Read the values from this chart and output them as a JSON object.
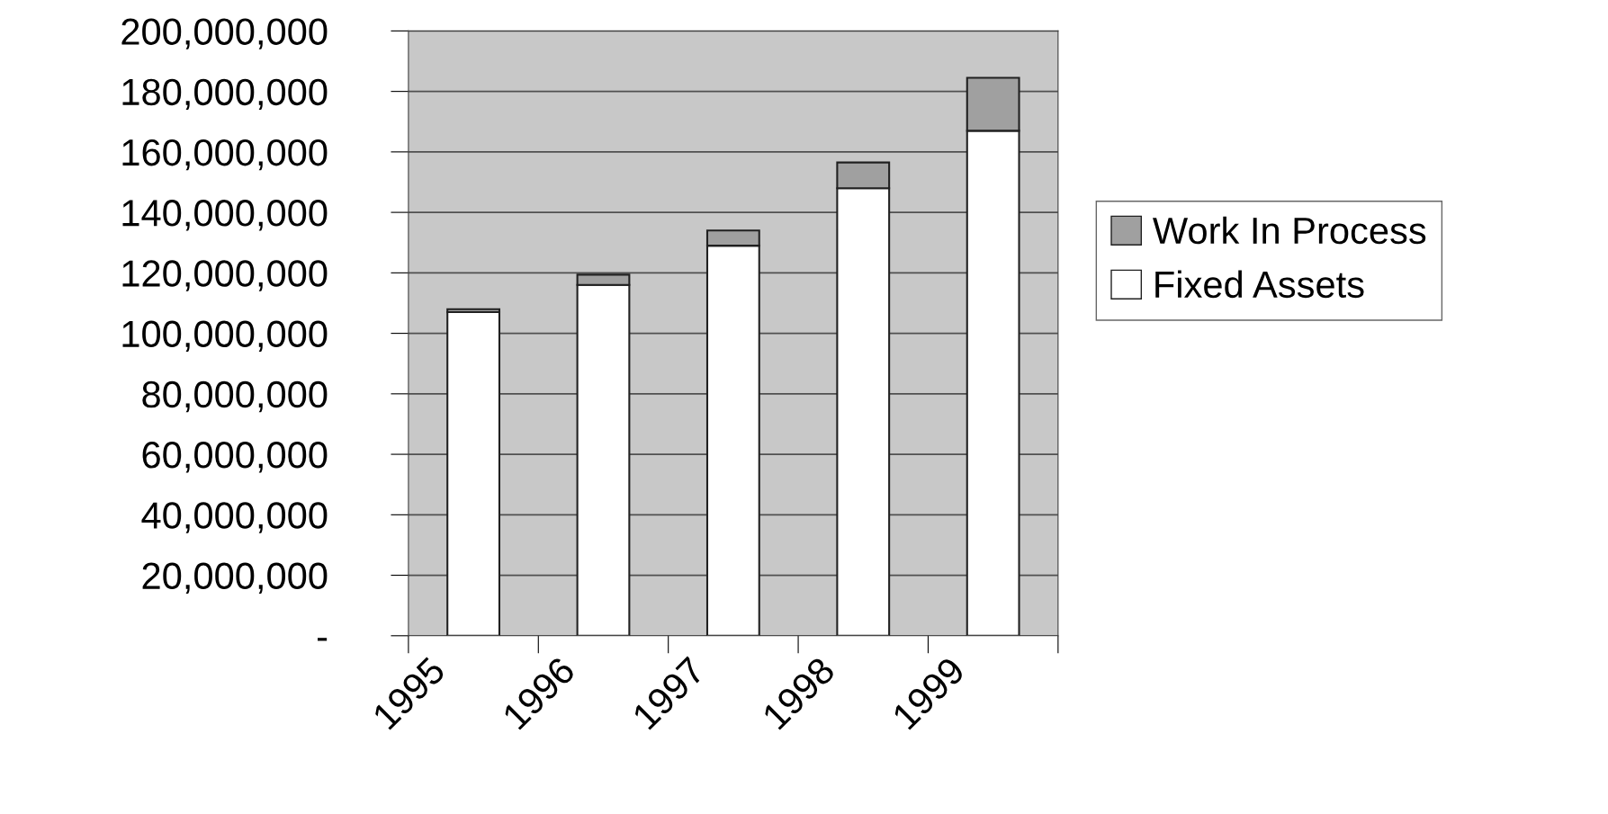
{
  "chart_data": {
    "type": "bar",
    "stacked": true,
    "categories": [
      "1995",
      "1996",
      "1997",
      "1998",
      "1999"
    ],
    "series": [
      {
        "name": "Fixed Assets",
        "color": "#ffffff",
        "values": [
          107000000,
          116000000,
          129000000,
          148000000,
          167000000
        ]
      },
      {
        "name": "Work In Process",
        "color": "#a0a0a0",
        "values": [
          1000000,
          3400000,
          5000000,
          8500000,
          17500000
        ]
      }
    ],
    "ylim": [
      0,
      200000000
    ],
    "yticks": [
      {
        "value": 0,
        "label": "-"
      },
      {
        "value": 20000000,
        "label": "20,000,000"
      },
      {
        "value": 40000000,
        "label": "40,000,000"
      },
      {
        "value": 60000000,
        "label": "60,000,000"
      },
      {
        "value": 80000000,
        "label": "80,000,000"
      },
      {
        "value": 100000000,
        "label": "100,000,000"
      },
      {
        "value": 120000000,
        "label": "120,000,000"
      },
      {
        "value": 140000000,
        "label": "140,000,000"
      },
      {
        "value": 160000000,
        "label": "160,000,000"
      },
      {
        "value": 180000000,
        "label": "180,000,000"
      },
      {
        "value": 200000000,
        "label": "200,000,000"
      }
    ],
    "grid": "y",
    "legend": "right"
  }
}
